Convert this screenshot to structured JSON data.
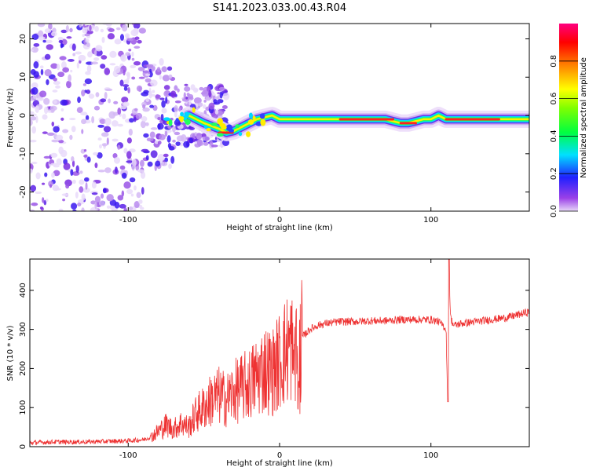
{
  "title": "S141.2023.033.00.43.R04",
  "chart_data": [
    {
      "type": "heatmap",
      "xlabel": "Height of straight line (km)",
      "ylabel": "Frequency (Hz)",
      "xlim": [
        -165,
        165
      ],
      "ylim": [
        -25,
        24
      ],
      "x_ticks": [
        -100,
        0,
        100
      ],
      "y_ticks": [
        -20,
        -10,
        0,
        10,
        20
      ],
      "colorbar": {
        "label": "Normalized spectral amplitude",
        "ticks": [
          0.0,
          0.2,
          0.4,
          0.6,
          0.8
        ],
        "range": [
          0,
          1
        ]
      },
      "ridge": {
        "x": [
          -60,
          -50,
          -40,
          -35,
          -30,
          -25,
          -20,
          -15,
          -10,
          -5,
          0,
          10,
          20,
          40,
          60,
          70,
          75,
          80,
          85,
          90,
          95,
          100,
          105,
          110,
          130,
          150,
          165
        ],
        "y": [
          0,
          -2,
          -3.5,
          -4.5,
          -4,
          -3,
          -2,
          -1,
          -0.5,
          0,
          -1,
          -1,
          -1,
          -1,
          -1,
          -1,
          -1.5,
          -2,
          -2,
          -1.5,
          -1,
          -1,
          0,
          -1,
          -1,
          -1,
          -1
        ]
      },
      "scatter_region_x": [
        -165,
        -55
      ]
    },
    {
      "type": "line",
      "xlabel": "Height of straight line (km)",
      "ylabel": "SNR (10 * v/v)",
      "xlim": [
        -165,
        165
      ],
      "ylim": [
        0,
        480
      ],
      "x_ticks": [
        -100,
        0,
        100
      ],
      "y_ticks": [
        0,
        100,
        200,
        300,
        400
      ],
      "color": "#ee3333",
      "series": [
        {
          "x": [
            -165,
            -150,
            -130,
            -110,
            -100,
            -90,
            -85,
            -80,
            -75,
            -70,
            -65,
            -60,
            -55,
            -50,
            -45,
            -40,
            -35,
            -30,
            -25,
            -20,
            -15,
            -10,
            -5,
            0,
            5,
            8,
            10,
            12,
            15,
            20,
            25,
            30,
            40,
            50,
            60,
            70,
            80,
            90,
            100,
            105,
            108,
            110,
            111,
            112,
            113,
            115,
            120,
            130,
            140,
            150,
            160,
            165
          ],
          "y": [
            10,
            12,
            12,
            14,
            15,
            18,
            25,
            40,
            55,
            45,
            60,
            50,
            85,
            100,
            120,
            130,
            120,
            140,
            150,
            160,
            180,
            200,
            190,
            220,
            250,
            260,
            200,
            240,
            280,
            300,
            310,
            315,
            320,
            320,
            322,
            322,
            325,
            325,
            325,
            320,
            310,
            300,
            115,
            440,
            330,
            310,
            315,
            320,
            325,
            330,
            340,
            345
          ]
        }
      ]
    }
  ]
}
